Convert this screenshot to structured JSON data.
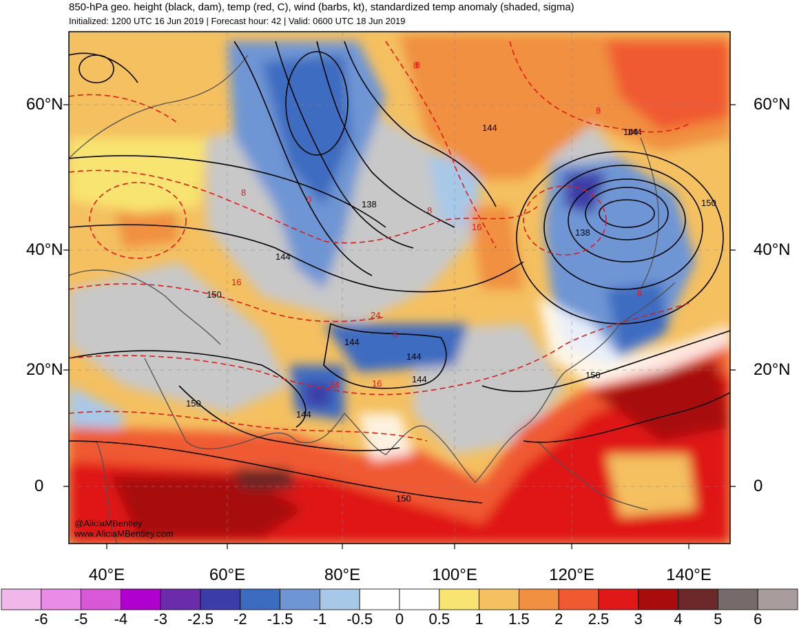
{
  "header": {
    "title": "850-hPa geo. height (black, dam), temp (red, C), wind (barbs, kt), standardized temp anomaly (shaded, sigma)",
    "subtitle": "Initialized: 1200 UTC 16 Jun 2019 | Forecast hour: 42 | Valid: 0600 UTC 18 Jun 2019"
  },
  "axes": {
    "lat_left": [
      "60°N",
      "40°N",
      "20°N",
      "0"
    ],
    "lat_right": [
      "60°N",
      "40°N",
      "20°N",
      "0"
    ],
    "lon_bottom": [
      "40°E",
      "60°E",
      "80°E",
      "100°E",
      "120°E",
      "140°E"
    ]
  },
  "colorbar": {
    "labels": [
      "-6",
      "-5",
      "-4",
      "-3",
      "-2.5",
      "-2",
      "-1.5",
      "-1",
      "-0.5",
      "0",
      "0.5",
      "1",
      "1.5",
      "2",
      "2.5",
      "3",
      "4",
      "5",
      "6"
    ],
    "colors": [
      "#f0b8e8",
      "#e88ce8",
      "#d858d8",
      "#b000d0",
      "#6a2ca8",
      "#3c3ca8",
      "#3c6cc0",
      "#6e96d4",
      "#a8c8e8",
      "#ffffff",
      "#ffffff",
      "#f8e470",
      "#f4c060",
      "#f09040",
      "#f05a30",
      "#e01818",
      "#a80c0c",
      "#6c2828",
      "#766a6a",
      "#a89c9c"
    ]
  },
  "height_labels": [
    "150",
    "144",
    "138",
    "144",
    "150",
    "150",
    "144",
    "144",
    "144",
    "144",
    "144",
    "150",
    "150",
    "138",
    "144",
    "150"
  ],
  "temp_labels": [
    "8",
    "8",
    "8",
    "8",
    "8",
    "8",
    "0",
    "16",
    "16",
    "16",
    "24",
    "24",
    "8"
  ],
  "credit": {
    "handle": "@AliciaMBentley",
    "site": "www.AliciaMBentley.com"
  },
  "palette": {
    "height_contour": "#000000",
    "temp_contour": "#e01818",
    "coastline": "#555555",
    "no_data_grey": "#c8c8c8"
  }
}
